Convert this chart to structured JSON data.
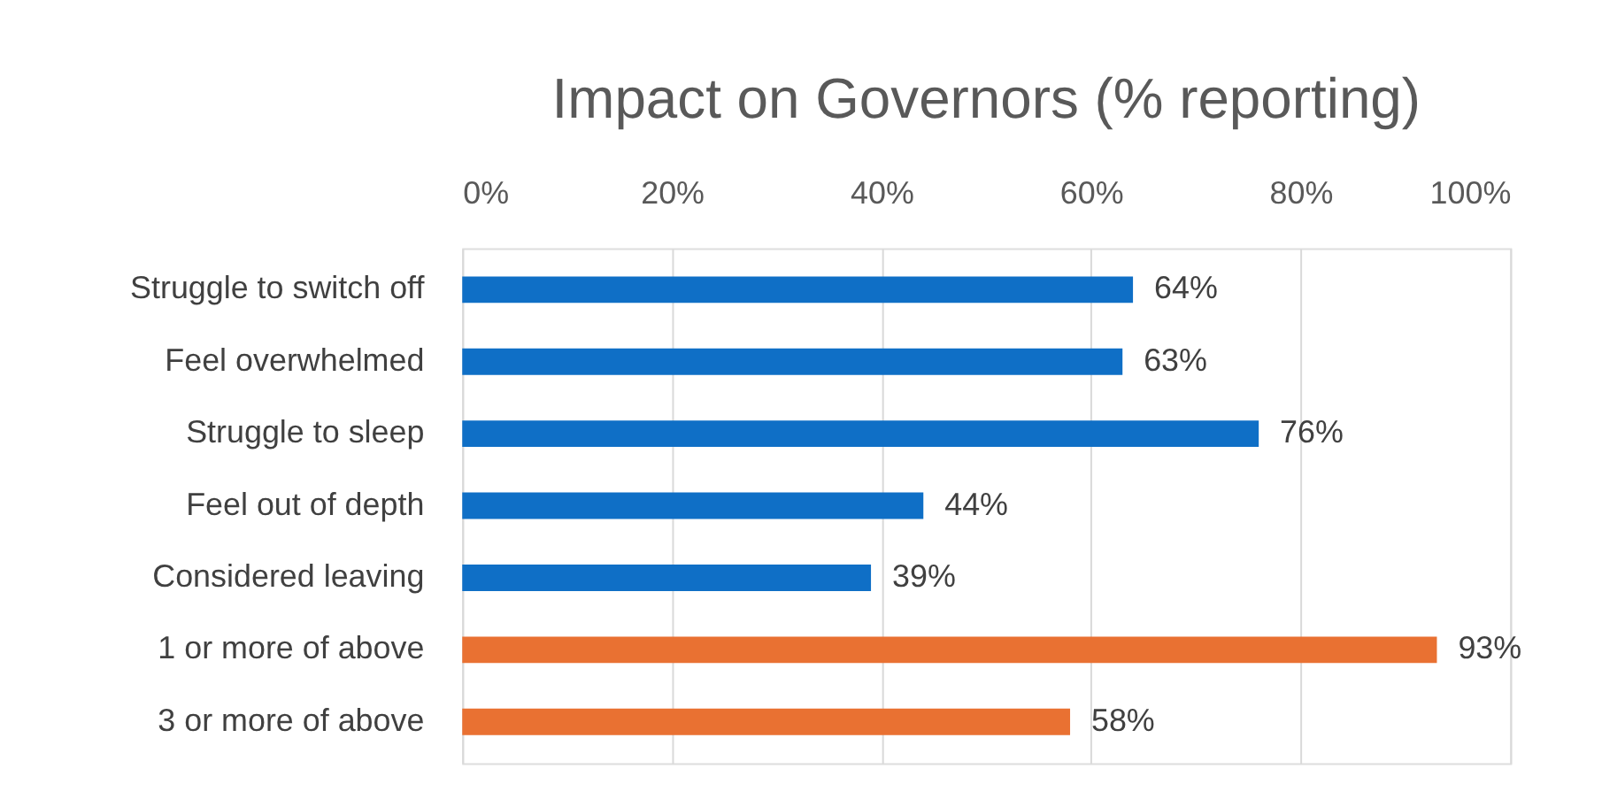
{
  "chart_data": {
    "type": "bar",
    "orientation": "horizontal",
    "title": "Impact on Governors (% reporting)",
    "categories": [
      "Struggle to switch off",
      "Feel overwhelmed",
      "Struggle to sleep",
      "Feel out of depth",
      "Considered leaving",
      "1 or more of above",
      "3 or more of above"
    ],
    "values": [
      64,
      63,
      76,
      44,
      39,
      93,
      58
    ],
    "colors": [
      "#0f6fc6",
      "#0f6fc6",
      "#0f6fc6",
      "#0f6fc6",
      "#0f6fc6",
      "#e97132",
      "#e97132"
    ],
    "value_labels": [
      "64%",
      "63%",
      "76%",
      "44%",
      "39%",
      "93%",
      "58%"
    ],
    "xlim": [
      0,
      100
    ],
    "xticks": [
      {
        "value": 0,
        "label": "0%"
      },
      {
        "value": 20,
        "label": "20%"
      },
      {
        "value": 40,
        "label": "40%"
      },
      {
        "value": 60,
        "label": "60%"
      },
      {
        "value": 80,
        "label": "80%"
      },
      {
        "value": 100,
        "label": "100%"
      }
    ],
    "grid": "x"
  }
}
